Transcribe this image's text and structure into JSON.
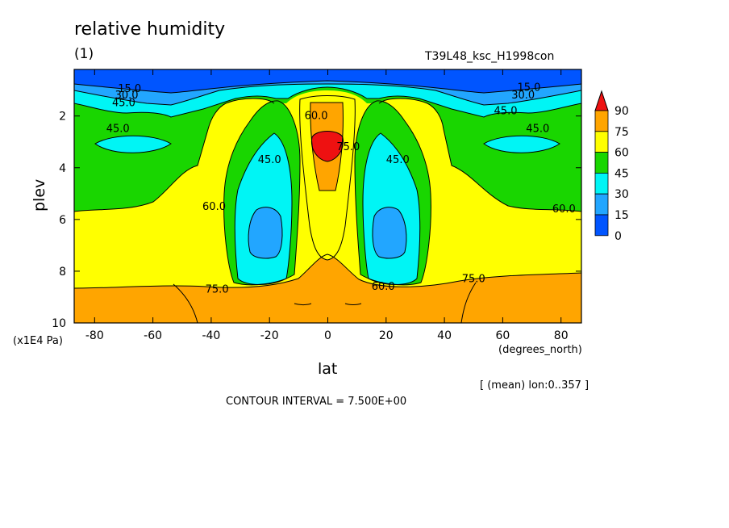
{
  "figure": {
    "title": "relative humidity",
    "subtitle": "(1)",
    "run_name": "T39L48_ksc_H1998con",
    "contour_interval": "CONTOUR INTERVAL = 7.500E+00",
    "mean_note": "[ (mean) lon:0..357 ]"
  },
  "chart_data": {
    "type": "heatmap",
    "title": "relative humidity",
    "xlabel": "lat",
    "x_units": "(degrees_north)",
    "ylabel": "plev",
    "y_units": "(x1E4 Pa)",
    "xlim": [
      -87,
      87
    ],
    "ylim": [
      10,
      0.2
    ],
    "x_ticks": [
      -80,
      -60,
      -40,
      -20,
      0,
      20,
      40,
      60,
      80
    ],
    "y_ticks": [
      2,
      4,
      6,
      8,
      10
    ],
    "colorbar": {
      "levels": [
        0,
        15,
        30,
        45,
        60,
        75,
        90
      ],
      "colors": [
        "#0055ff",
        "#22a6ff",
        "#00f5f5",
        "#19d600",
        "#ffff00",
        "#ffa500",
        "#ee1111"
      ]
    },
    "contour_labels": [
      {
        "text": "15.0",
        "x": -68,
        "y": 0.95
      },
      {
        "text": "30.0",
        "x": -69,
        "y": 1.2
      },
      {
        "text": "45.0",
        "x": -70,
        "y": 1.5
      },
      {
        "text": "45.0",
        "x": -72,
        "y": 2.5
      },
      {
        "text": "60.0",
        "x": -4,
        "y": 2.0
      },
      {
        "text": "45.0",
        "x": -20,
        "y": 3.7
      },
      {
        "text": "75.0",
        "x": 7,
        "y": 3.2
      },
      {
        "text": "45.0",
        "x": 24,
        "y": 3.7
      },
      {
        "text": "15.0",
        "x": 69,
        "y": 0.9
      },
      {
        "text": "30.0",
        "x": 67,
        "y": 1.2
      },
      {
        "text": "45.0",
        "x": 61,
        "y": 1.8
      },
      {
        "text": "45.0",
        "x": 72,
        "y": 2.5
      },
      {
        "text": "60.0",
        "x": -39,
        "y": 5.5
      },
      {
        "text": "60.0",
        "x": 81,
        "y": 5.6
      },
      {
        "text": "75.0",
        "x": -38,
        "y": 8.7
      },
      {
        "text": "60.0",
        "x": 19,
        "y": 8.6
      },
      {
        "text": "75.0",
        "x": 50,
        "y": 8.3
      }
    ]
  }
}
